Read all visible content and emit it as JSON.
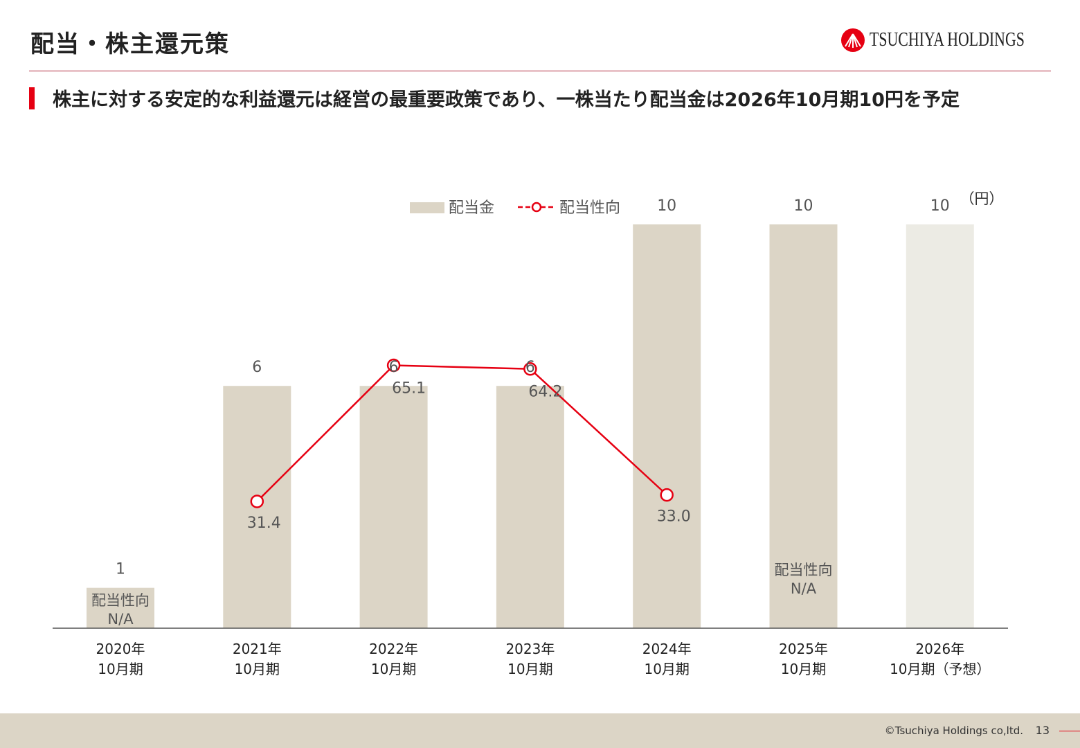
{
  "header": {
    "title": "配当・株主還元策",
    "logo_text": "TSUCHIYA HOLDINGS"
  },
  "subtitle": "株主に対する安定的な利益還元は経営の最重要政策であり、一株当たり配当金は2026年10月期10円を予定",
  "chart_data": {
    "type": "bar",
    "unit_label": "（円）",
    "categories": [
      [
        "2020年",
        "10月期"
      ],
      [
        "2021年",
        "10月期"
      ],
      [
        "2022年",
        "10月期"
      ],
      [
        "2023年",
        "10月期"
      ],
      [
        "2024年",
        "10月期"
      ],
      [
        "2025年",
        "10月期"
      ],
      [
        "2026年",
        "10月期（予想）"
      ]
    ],
    "series": [
      {
        "name": "配当金",
        "type": "bar",
        "values": [
          1,
          6,
          6,
          6,
          10,
          10,
          10
        ],
        "forecast_index": 6
      },
      {
        "name": "配当性向",
        "type": "line",
        "values": [
          null,
          31.4,
          65.1,
          64.2,
          33.0,
          null,
          null
        ],
        "labels": [
          "",
          "31.4",
          "65.1",
          "64.2",
          "33.0",
          "",
          ""
        ]
      }
    ],
    "na_notes": [
      {
        "index": 0,
        "lines": [
          "配当性向",
          "N/A"
        ]
      },
      {
        "index": 5,
        "lines": [
          "配当性向",
          "N/A"
        ]
      }
    ],
    "ylim": [
      0,
      10
    ],
    "y2lim": [
      0,
      100
    ],
    "legend_position": "top",
    "colors": {
      "bar": "#dcd5c6",
      "bar_forecast": "#ecebe4",
      "line": "#e60012",
      "axis": "#555555",
      "text": "#555555"
    }
  },
  "footer": {
    "copyright": "©Tsuchiya Holdings co,ltd.",
    "page_number": "13"
  },
  "colors": {
    "accent": "#e60012",
    "footer_band": "#dcd5c6"
  }
}
